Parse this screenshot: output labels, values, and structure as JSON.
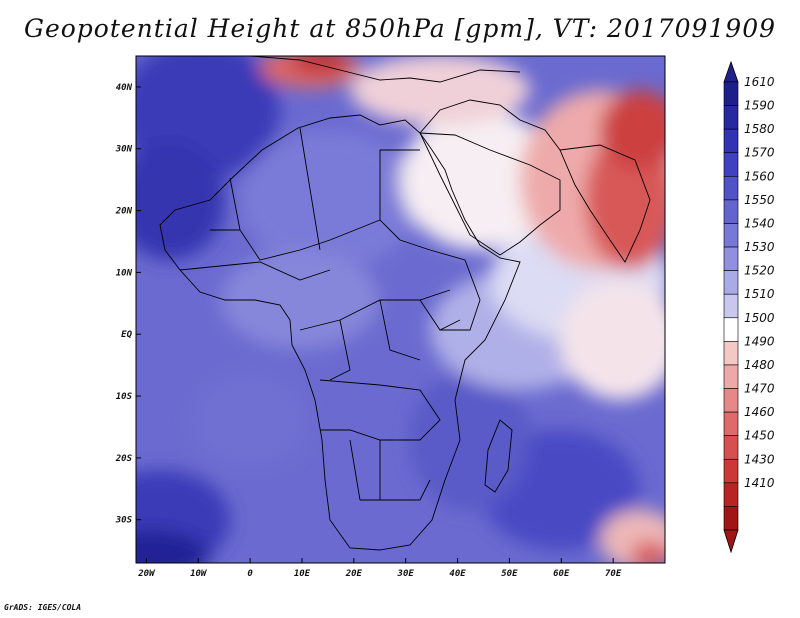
{
  "title": "Geopotential Height at 850hPa [gpm], VT: 2017091909",
  "footer": "GrADS: IGES/COLA",
  "map": {
    "lon_range": [
      -22,
      80
    ],
    "lat_range": [
      -37,
      45
    ],
    "x_ticks": [
      {
        "v": -20,
        "label": "20W"
      },
      {
        "v": -10,
        "label": "10W"
      },
      {
        "v": 0,
        "label": "0"
      },
      {
        "v": 10,
        "label": "10E"
      },
      {
        "v": 20,
        "label": "20E"
      },
      {
        "v": 30,
        "label": "30E"
      },
      {
        "v": 40,
        "label": "40E"
      },
      {
        "v": 50,
        "label": "50E"
      },
      {
        "v": 60,
        "label": "60E"
      },
      {
        "v": 70,
        "label": "70E"
      }
    ],
    "y_ticks": [
      {
        "v": 40,
        "label": "40N"
      },
      {
        "v": 30,
        "label": "30N"
      },
      {
        "v": 20,
        "label": "20N"
      },
      {
        "v": 10,
        "label": "10N"
      },
      {
        "v": 0,
        "label": "EQ"
      },
      {
        "v": -10,
        "label": "10S"
      },
      {
        "v": -20,
        "label": "20S"
      },
      {
        "v": -30,
        "label": "30S"
      }
    ]
  },
  "colorbar": {
    "labels": [
      "1610",
      "1590",
      "1580",
      "1570",
      "1560",
      "1550",
      "1540",
      "1530",
      "1520",
      "1510",
      "1500",
      "1490",
      "1480",
      "1470",
      "1460",
      "1450",
      "1430",
      "1410"
    ],
    "colors": [
      "#1f1f8c",
      "#2828a0",
      "#3232b4",
      "#4040c0",
      "#5252c8",
      "#6464cf",
      "#7878d6",
      "#9090de",
      "#aaaae6",
      "#c8c8ee",
      "#ffffff",
      "#f5c8c8",
      "#eea8a8",
      "#e68888",
      "#de6a6a",
      "#d65050",
      "#cc3838",
      "#b82424",
      "#a01616"
    ]
  }
}
